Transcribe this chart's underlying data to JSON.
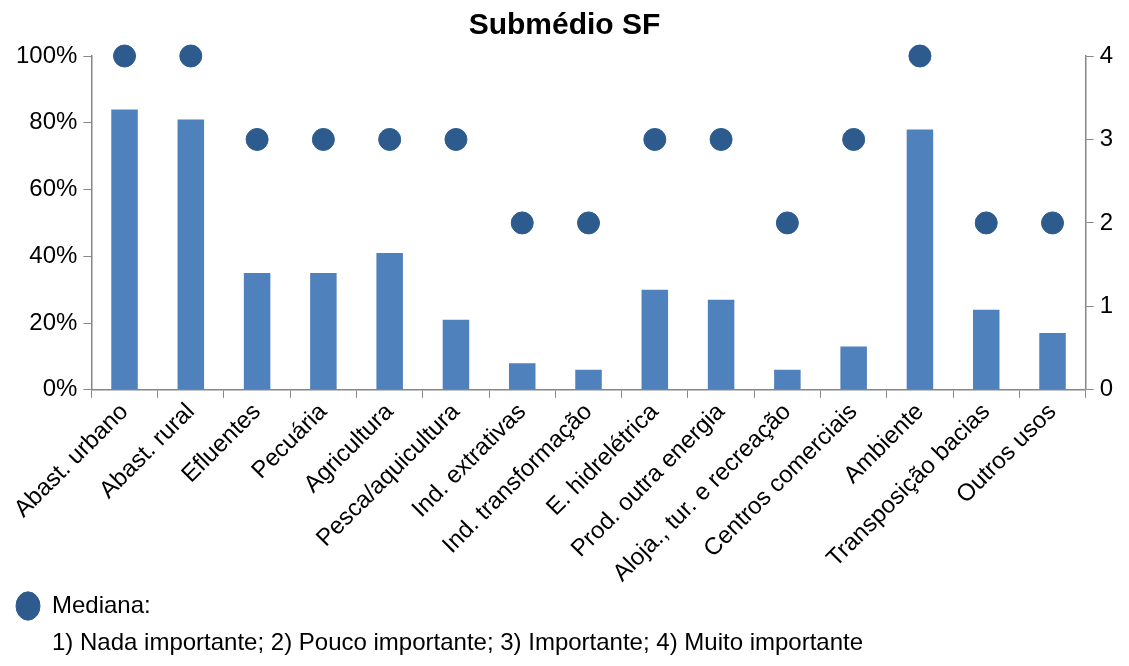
{
  "chart_data": {
    "type": "bar",
    "title": "Submédio SF",
    "categories": [
      "Abast. urbano",
      "Abast. rural",
      "Efluentes",
      "Pecuária",
      "Agricultura",
      "Pesca/aquicultura",
      "Ind. extrativas",
      "Ind. transformação",
      "E. hidrelétrica",
      "Prod. outra energia",
      "Aloja., tur. e recreação",
      "Centros comerciais",
      "Ambiente",
      "Transposição bacias",
      "Outros usos"
    ],
    "series": [
      {
        "color": "#4f81bd",
        "values": [
          84,
          81,
          35,
          35,
          41,
          21,
          8,
          6,
          30,
          27,
          6,
          13,
          78,
          24,
          17
        ]
      },
      {
        "type": "scatter",
        "name": "Mediana:",
        "color": "#2e5b8e",
        "axis": "y2",
        "x": [
          "Abast. urbano",
          "Abast. rural",
          "Efluentes",
          "Pecuária",
          "Agricultura",
          "Pesca/aquicultura",
          "Ind. extrativas",
          "Ind. transformação",
          "E. hidrelétrica",
          "Prod. outra energia",
          "Aloja., tur. e recreação",
          "Centros comerciais",
          "Ambiente",
          "Transposição bacias",
          "Outros usos"
        ],
        "values": [
          4,
          4,
          3,
          3,
          3,
          3,
          2,
          2,
          3,
          3,
          2,
          3,
          4,
          2,
          2
        ]
      }
    ],
    "ylim": [
      0,
      100
    ],
    "yticks": [
      {
        "value": 0,
        "label": "0%"
      },
      {
        "value": 20,
        "label": "20%"
      },
      {
        "value": 40,
        "label": "40%"
      },
      {
        "value": 60,
        "label": "60%"
      },
      {
        "value": 80,
        "label": "80%"
      },
      {
        "value": 100,
        "label": "100%"
      }
    ],
    "y2lim": [
      0,
      4
    ],
    "y2ticks": [
      0,
      1,
      2,
      3,
      4
    ],
    "marker": "circle",
    "grid": false,
    "legend": "bottom left",
    "annotations": [
      "1) Nada importante; 2) Pouco importante; 3) Importante; 4) Muito importante"
    ]
  }
}
